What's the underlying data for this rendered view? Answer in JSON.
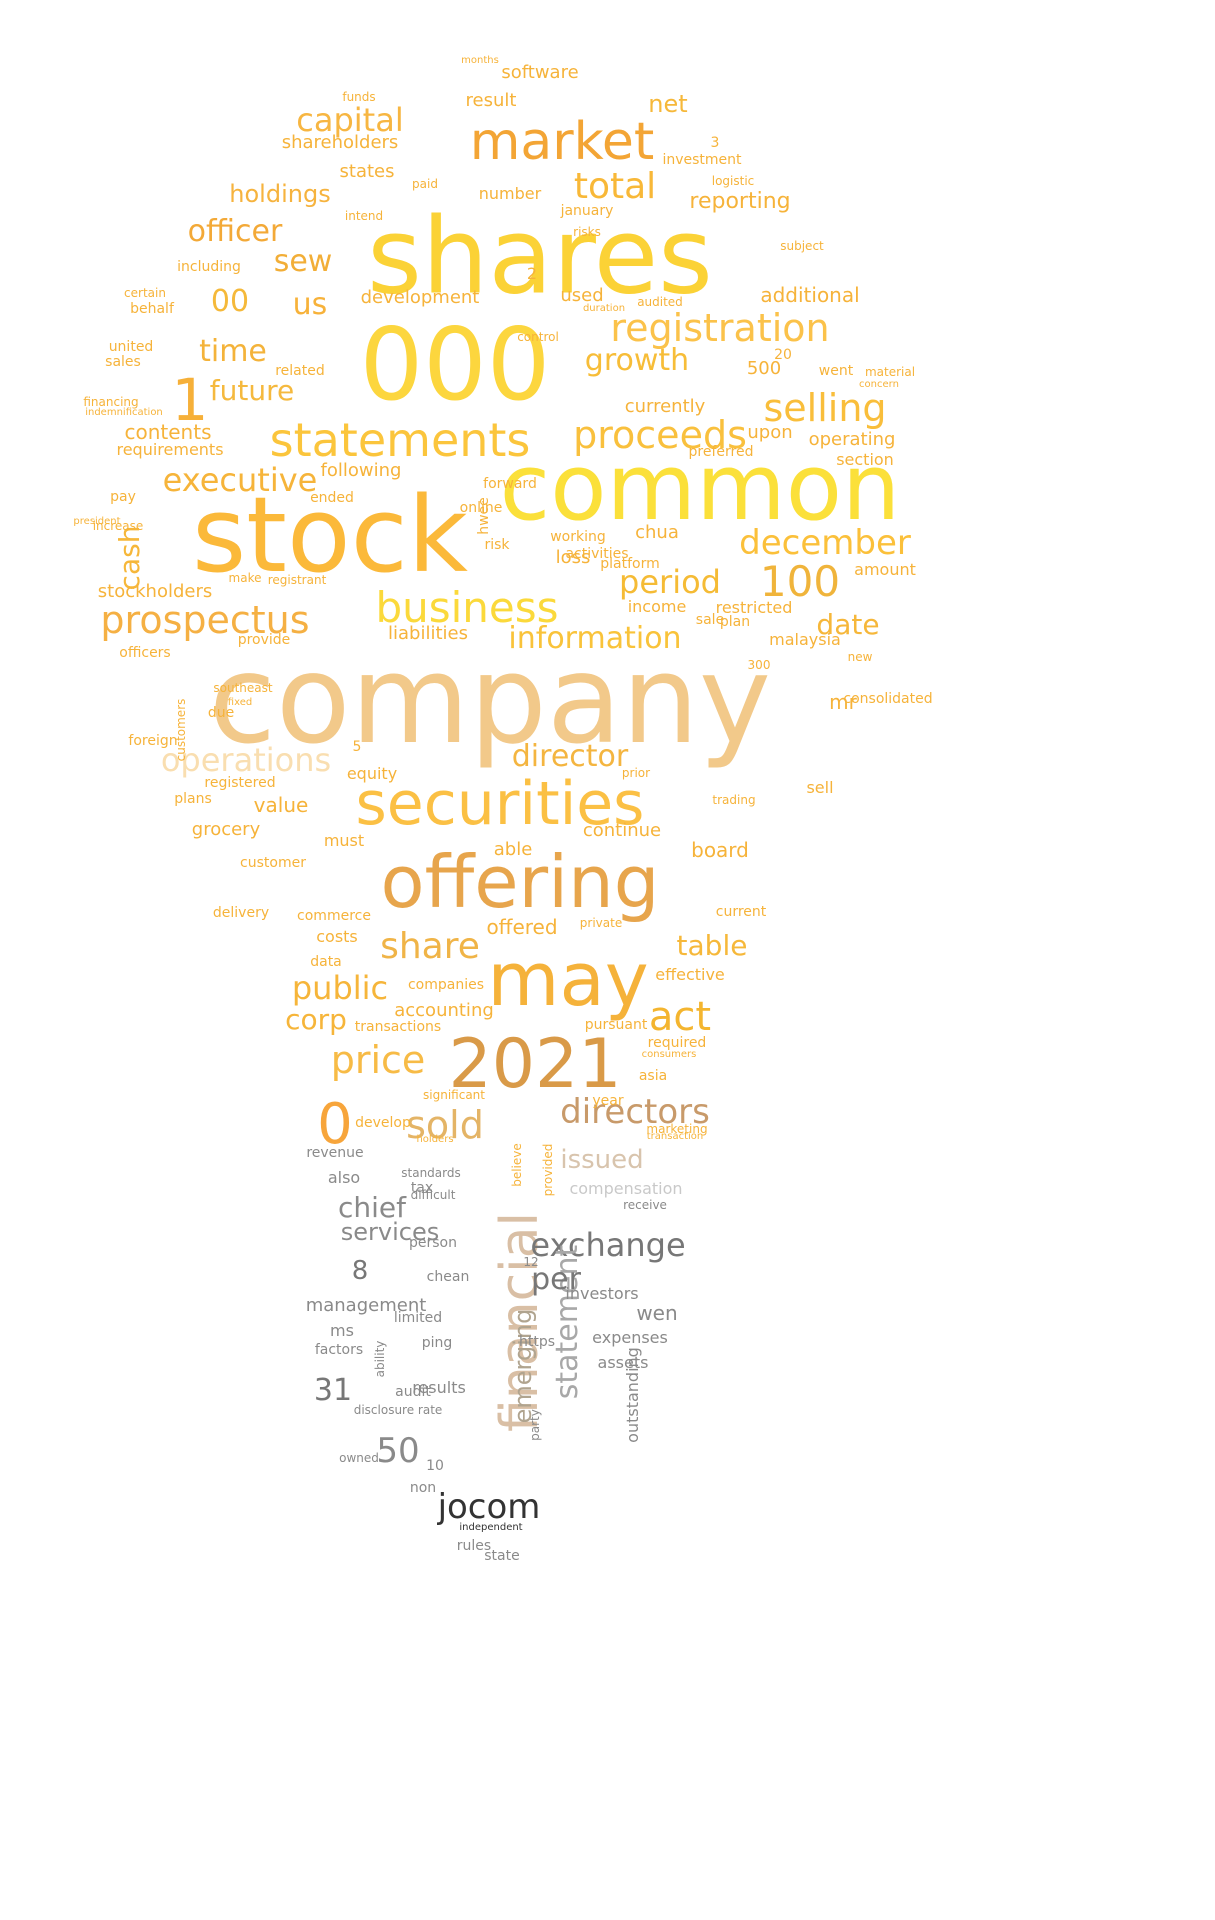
{
  "words": [
    {
      "text": "company",
      "color": "#f2c98a"
    },
    {
      "text": "shares",
      "color": "#fbd236"
    },
    {
      "text": "stock",
      "color": "#fbb93a"
    },
    {
      "text": "000",
      "color": "#fcd63e"
    },
    {
      "text": "common",
      "color": "#fbe03a"
    },
    {
      "text": "offering",
      "color": "#e7a54c"
    },
    {
      "text": "securities",
      "color": "#fbc044"
    },
    {
      "text": "market",
      "color": "#f3a535"
    },
    {
      "text": "financial",
      "color": "#d9bfa5"
    },
    {
      "text": "2021",
      "color": "#d99a48"
    },
    {
      "text": "may",
      "color": "#f5b23a"
    },
    {
      "text": "statements",
      "color": "#fbc53c"
    },
    {
      "text": "business",
      "color": "#fbd93b"
    },
    {
      "text": "registration",
      "color": "#fbc24a"
    },
    {
      "text": "prospectus",
      "color": "#f5b043"
    },
    {
      "text": "0",
      "color": "#f7a53b"
    },
    {
      "text": "proceeds",
      "color": "#f9c03d"
    },
    {
      "text": "selling",
      "color": "#f9be3b"
    },
    {
      "text": "december",
      "color": "#fbc03a"
    },
    {
      "text": "directors",
      "color": "#c89a6a"
    },
    {
      "text": "information",
      "color": "#f9c33a"
    },
    {
      "text": "period",
      "color": "#f5bb35"
    },
    {
      "text": "100",
      "color": "#f0b43b"
    },
    {
      "text": "1",
      "color": "#f6b039"
    },
    {
      "text": "capital",
      "color": "#f7b642"
    },
    {
      "text": "total",
      "color": "#f8b838"
    },
    {
      "text": "operations",
      "color": "#f9deb0"
    },
    {
      "text": "executive",
      "color": "#f6b43a"
    },
    {
      "text": "officer",
      "color": "#f3a937"
    },
    {
      "text": "price",
      "color": "#f7bb46"
    },
    {
      "text": "share",
      "color": "#f0b447"
    },
    {
      "text": "public",
      "color": "#f6b53a"
    },
    {
      "text": "act",
      "color": "#f4b52f"
    },
    {
      "text": "sold",
      "color": "#e4b466"
    },
    {
      "text": "exchange",
      "color": "#777777"
    },
    {
      "text": "jocom",
      "color": "#333333"
    },
    {
      "text": "growth",
      "color": "#f7bd38"
    },
    {
      "text": "director",
      "color": "#f4b540"
    },
    {
      "text": "statement",
      "color": "#a8a8a8"
    },
    {
      "text": "emerging",
      "color": "#b0a48f"
    },
    {
      "text": "per",
      "color": "#777777"
    },
    {
      "text": "chief",
      "color": "#8a8a8a"
    },
    {
      "text": "services",
      "color": "#8a8a8a"
    },
    {
      "text": "holdings",
      "color": "#f6b33e"
    },
    {
      "text": "time",
      "color": "#f4b33a"
    },
    {
      "text": "future",
      "color": "#f5b93e"
    },
    {
      "text": "us",
      "color": "#f7b23a"
    },
    {
      "text": "sew",
      "color": "#f2ae37"
    },
    {
      "text": "00",
      "color": "#f5b93a"
    },
    {
      "text": "cash",
      "color": "#f6b73a"
    },
    {
      "text": "corp",
      "color": "#f6b53a"
    },
    {
      "text": "table",
      "color": "#f6b83a"
    },
    {
      "text": "date",
      "color": "#f6b73a"
    },
    {
      "text": "issued",
      "color": "#d8c4ad"
    },
    {
      "text": "31",
      "color": "#777777"
    },
    {
      "text": "50",
      "color": "#8a8a8a"
    },
    {
      "text": "8",
      "color": "#777777"
    },
    {
      "text": "net",
      "color": "#f6b83a"
    },
    {
      "text": "software",
      "color": "#f6b33a"
    },
    {
      "text": "result",
      "color": "#f6b33a"
    },
    {
      "text": "shareholders",
      "color": "#f6b33a"
    },
    {
      "text": "states",
      "color": "#f6b33a"
    },
    {
      "text": "reporting",
      "color": "#f6b33a"
    },
    {
      "text": "investment",
      "color": "#f6b33a"
    },
    {
      "text": "january",
      "color": "#f6b33a"
    },
    {
      "text": "number",
      "color": "#f6b33a"
    },
    {
      "text": "additional",
      "color": "#f6b33a"
    },
    {
      "text": "development",
      "color": "#f6b33a"
    },
    {
      "text": "used",
      "color": "#f6b33a"
    },
    {
      "text": "500",
      "color": "#f6b33a"
    },
    {
      "text": "currently",
      "color": "#f6b33a"
    },
    {
      "text": "operating",
      "color": "#f6b33a"
    },
    {
      "text": "section",
      "color": "#f6b33a"
    },
    {
      "text": "upon",
      "color": "#f6b33a"
    },
    {
      "text": "preferred",
      "color": "#f6b33a"
    },
    {
      "text": "contents",
      "color": "#f6b33a"
    },
    {
      "text": "requirements",
      "color": "#f6b33a"
    },
    {
      "text": "following",
      "color": "#f6b33a"
    },
    {
      "text": "ended",
      "color": "#f6b33a"
    },
    {
      "text": "forward",
      "color": "#f6b33a"
    },
    {
      "text": "online",
      "color": "#f6b33a"
    },
    {
      "text": "chua",
      "color": "#f6b33a"
    },
    {
      "text": "loss",
      "color": "#f6b33a"
    },
    {
      "text": "working",
      "color": "#f6b33a"
    },
    {
      "text": "activities",
      "color": "#f6b33a"
    },
    {
      "text": "platform",
      "color": "#f6b33a"
    },
    {
      "text": "risk",
      "color": "#f6b33a"
    },
    {
      "text": "hwee",
      "color": "#f6b33a"
    },
    {
      "text": "stockholders",
      "color": "#f6b33a"
    },
    {
      "text": "amount",
      "color": "#f6b33a"
    },
    {
      "text": "income",
      "color": "#f6b33a"
    },
    {
      "text": "restricted",
      "color": "#f6b33a"
    },
    {
      "text": "liabilities",
      "color": "#f6b33a"
    },
    {
      "text": "plan",
      "color": "#f6b33a"
    },
    {
      "text": "sale",
      "color": "#f6b33a"
    },
    {
      "text": "provide",
      "color": "#f6b33a"
    },
    {
      "text": "malaysia",
      "color": "#f6b33a"
    },
    {
      "text": "officers",
      "color": "#f6b33a"
    },
    {
      "text": "mr",
      "color": "#f6b33a"
    },
    {
      "text": "consolidated",
      "color": "#f6b33a"
    },
    {
      "text": "equity",
      "color": "#f6b33a"
    },
    {
      "text": "value",
      "color": "#f6b33a"
    },
    {
      "text": "sell",
      "color": "#f6b33a"
    },
    {
      "text": "registered",
      "color": "#f6b33a"
    },
    {
      "text": "plans",
      "color": "#f6b33a"
    },
    {
      "text": "grocery",
      "color": "#f6b33a"
    },
    {
      "text": "must",
      "color": "#f6b33a"
    },
    {
      "text": "continue",
      "color": "#f6b33a"
    },
    {
      "text": "able",
      "color": "#f6b33a"
    },
    {
      "text": "board",
      "color": "#f6b33a"
    },
    {
      "text": "customer",
      "color": "#f6b33a"
    },
    {
      "text": "commerce",
      "color": "#f6b33a"
    },
    {
      "text": "delivery",
      "color": "#f6b33a"
    },
    {
      "text": "offered",
      "color": "#f6b33a"
    },
    {
      "text": "costs",
      "color": "#f6b33a"
    },
    {
      "text": "effective",
      "color": "#f6b33a"
    },
    {
      "text": "data",
      "color": "#f6b33a"
    },
    {
      "text": "companies",
      "color": "#f6b33a"
    },
    {
      "text": "accounting",
      "color": "#f6b33a"
    },
    {
      "text": "transactions",
      "color": "#f6b33a"
    },
    {
      "text": "pursuant",
      "color": "#f6b33a"
    },
    {
      "text": "required",
      "color": "#f6b33a"
    },
    {
      "text": "asia",
      "color": "#f6b33a"
    },
    {
      "text": "year",
      "color": "#f6b33a"
    },
    {
      "text": "develop",
      "color": "#f6b33a"
    },
    {
      "text": "revenue",
      "color": "#8a8a8a"
    },
    {
      "text": "also",
      "color": "#8a8a8a"
    },
    {
      "text": "tax",
      "color": "#8a8a8a"
    },
    {
      "text": "compensation",
      "color": "#c9c9c9"
    },
    {
      "text": "management",
      "color": "#8a8a8a"
    },
    {
      "text": "investors",
      "color": "#8a8a8a"
    },
    {
      "text": "wen",
      "color": "#8a8a8a"
    },
    {
      "text": "ms",
      "color": "#8a8a8a"
    },
    {
      "text": "expenses",
      "color": "#8a8a8a"
    },
    {
      "text": "assets",
      "color": "#8a8a8a"
    },
    {
      "text": "factors",
      "color": "#8a8a8a"
    },
    {
      "text": "results",
      "color": "#8a8a8a"
    },
    {
      "text": "audit",
      "color": "#8a8a8a"
    },
    {
      "text": "ping",
      "color": "#8a8a8a"
    },
    {
      "text": "limited",
      "color": "#8a8a8a"
    },
    {
      "text": "chean",
      "color": "#8a8a8a"
    },
    {
      "text": "person",
      "color": "#8a8a8a"
    },
    {
      "text": "outstanding",
      "color": "#8a8a8a"
    },
    {
      "text": "https",
      "color": "#8a8a8a"
    },
    {
      "text": "rules",
      "color": "#8a8a8a"
    },
    {
      "text": "10",
      "color": "#8a8a8a"
    },
    {
      "text": "non",
      "color": "#8a8a8a"
    },
    {
      "text": "owned",
      "color": "#8a8a8a"
    },
    {
      "text": "state",
      "color": "#8a8a8a"
    },
    {
      "text": "5",
      "color": "#f6b33a"
    },
    {
      "text": "20",
      "color": "#f6b33a"
    },
    {
      "text": "went",
      "color": "#f6b33a"
    },
    {
      "text": "3",
      "color": "#f6b33a"
    },
    {
      "text": "2",
      "color": "#f6b33a"
    },
    {
      "text": "funds",
      "color": "#f6b33a"
    },
    {
      "text": "sales",
      "color": "#f6b33a"
    },
    {
      "text": "united",
      "color": "#f6b33a"
    },
    {
      "text": "behalf",
      "color": "#f6b33a"
    },
    {
      "text": "certain",
      "color": "#f6b33a"
    },
    {
      "text": "including",
      "color": "#f6b33a"
    },
    {
      "text": "related",
      "color": "#f6b33a"
    },
    {
      "text": "financing",
      "color": "#f6b33a"
    },
    {
      "text": "indemnification",
      "color": "#f6b33a"
    },
    {
      "text": "pay",
      "color": "#f6b33a"
    },
    {
      "text": "increase",
      "color": "#f6b33a"
    },
    {
      "text": "president",
      "color": "#f6b33a"
    },
    {
      "text": "due",
      "color": "#f6b33a"
    },
    {
      "text": "foreign",
      "color": "#f6b33a"
    },
    {
      "text": "southeast",
      "color": "#f6b33a"
    },
    {
      "text": "fixed",
      "color": "#f6b33a"
    },
    {
      "text": "customers",
      "color": "#f6b33a"
    },
    {
      "text": "make",
      "color": "#f6b33a"
    },
    {
      "text": "registrant",
      "color": "#f6b33a"
    },
    {
      "text": "subject",
      "color": "#f6b33a"
    },
    {
      "text": "risks",
      "color": "#f6b33a"
    },
    {
      "text": "logistic",
      "color": "#f6b33a"
    },
    {
      "text": "intend",
      "color": "#f6b33a"
    },
    {
      "text": "paid",
      "color": "#f6b33a"
    },
    {
      "text": "months",
      "color": "#f6b33a"
    },
    {
      "text": "control",
      "color": "#f6b33a"
    },
    {
      "text": "duration",
      "color": "#f6b33a"
    },
    {
      "text": "audited",
      "color": "#f6b33a"
    },
    {
      "text": "material",
      "color": "#f6b33a"
    },
    {
      "text": "concern",
      "color": "#f6b33a"
    },
    {
      "text": "new",
      "color": "#f6b33a"
    },
    {
      "text": "300",
      "color": "#f6b33a"
    },
    {
      "text": "trading",
      "color": "#f6b33a"
    },
    {
      "text": "prior",
      "color": "#f6b33a"
    },
    {
      "text": "current",
      "color": "#f6b33a"
    },
    {
      "text": "private",
      "color": "#f6b33a"
    },
    {
      "text": "marketing",
      "color": "#f6b33a"
    },
    {
      "text": "transaction",
      "color": "#f6b33a"
    },
    {
      "text": "consumers",
      "color": "#f6b33a"
    },
    {
      "text": "significant",
      "color": "#f6b33a"
    },
    {
      "text": "holders",
      "color": "#f6b33a"
    },
    {
      "text": "believe",
      "color": "#f6b33a"
    },
    {
      "text": "provided",
      "color": "#f6b33a"
    },
    {
      "text": "standards",
      "color": "#8a8a8a"
    },
    {
      "text": "difficult",
      "color": "#8a8a8a"
    },
    {
      "text": "receive",
      "color": "#8a8a8a"
    },
    {
      "text": "12",
      "color": "#8a8a8a"
    },
    {
      "text": "ability",
      "color": "#8a8a8a"
    },
    {
      "text": "disclosure rate",
      "color": "#8a8a8a"
    },
    {
      "text": "party",
      "color": "#8a8a8a"
    },
    {
      "text": "independent",
      "color": "#333333"
    }
  ]
}
